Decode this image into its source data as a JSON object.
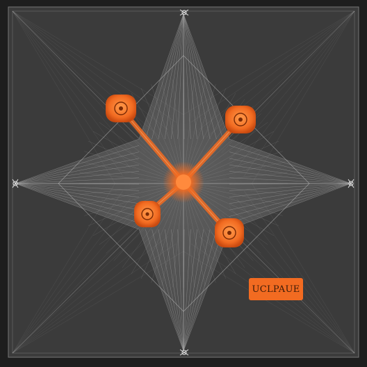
{
  "label": {
    "text": "UCLPAUE"
  },
  "colors": {
    "background": "#1e1e1e",
    "panel": "#3b3b3b",
    "line": "#cfcfcf",
    "accent": "#f26b21",
    "accent_glow": "#ff8a3d",
    "label_bg": "#f26b21",
    "label_text": "#3a1a08"
  },
  "icons": {
    "star_web": "star-web-icon",
    "orange_node": "orange-node-icon",
    "corner_knot": "knot-icon"
  }
}
